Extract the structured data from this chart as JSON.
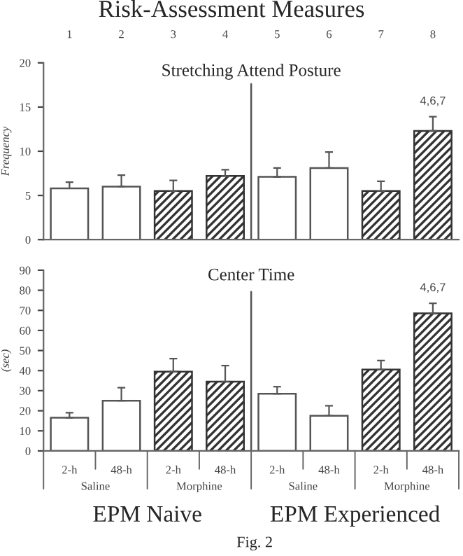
{
  "chart_data": [
    {
      "type": "bar",
      "title": "Risk-Assessment Measures",
      "subtitle": "Stretching Attend Posture",
      "ylabel": "Frequency",
      "categories": [
        "1",
        "2",
        "3",
        "4",
        "5",
        "6",
        "7",
        "8"
      ],
      "series": [
        {
          "color": "#ffffff",
          "values": [
            5.8,
            6.0,
            null,
            null,
            7.1,
            8.1,
            null,
            null
          ],
          "errors": [
            [
              5.8,
              6.5
            ],
            [
              6.0,
              7.3
            ],
            null,
            null,
            [
              7.1,
              8.1
            ],
            [
              8.1,
              9.9
            ],
            null,
            null
          ]
        },
        {
          "color": "#333333",
          "values": [
            null,
            null,
            5.5,
            7.2,
            null,
            null,
            5.5,
            12.3
          ],
          "errors": [
            null,
            null,
            [
              5.5,
              6.7
            ],
            [
              7.2,
              7.9
            ],
            null,
            null,
            [
              5.5,
              6.6
            ],
            [
              12.3,
              13.9
            ]
          ]
        }
      ],
      "ylim": [
        0,
        20
      ],
      "yticks": [
        0,
        5,
        10,
        15,
        20
      ],
      "grid": false,
      "annotations": [
        {
          "text": "4,6,7",
          "x": "8",
          "y": 13.9
        }
      ]
    },
    {
      "type": "bar",
      "title": "Center Time",
      "ylabel": "(sec)",
      "categories": [
        "2-h",
        "48-h",
        "2-h",
        "48-h",
        "2-h",
        "48-h",
        "2-h",
        "48-h"
      ],
      "series": [
        {
          "color": "#ffffff",
          "values": [
            16.5,
            25,
            null,
            null,
            28.5,
            17.5,
            null,
            null
          ],
          "errors": [
            [
              16.5,
              19
            ],
            [
              25,
              31.5
            ],
            null,
            null,
            [
              28.5,
              32
            ],
            [
              17.5,
              22.5
            ],
            null,
            null
          ]
        },
        {
          "color": "#333333",
          "values": [
            null,
            null,
            39.5,
            34.5,
            null,
            null,
            40.5,
            68.5
          ],
          "errors": [
            null,
            null,
            [
              39.5,
              46
            ],
            [
              34.5,
              42.5
            ],
            null,
            null,
            [
              40.5,
              45
            ],
            [
              68.5,
              73.5
            ]
          ]
        }
      ],
      "ylim": [
        0,
        90
      ],
      "yticks": [
        0,
        10,
        20,
        30,
        40,
        50,
        60,
        70,
        80,
        90
      ],
      "grid": false,
      "annotations": [
        {
          "text": "4,6,7",
          "y": 73.5
        },
        "Saline",
        "Morphine",
        "Saline",
        "Morphine",
        "EPM Naive",
        "EPM Experienced",
        "Fig. 2"
      ]
    }
  ]
}
